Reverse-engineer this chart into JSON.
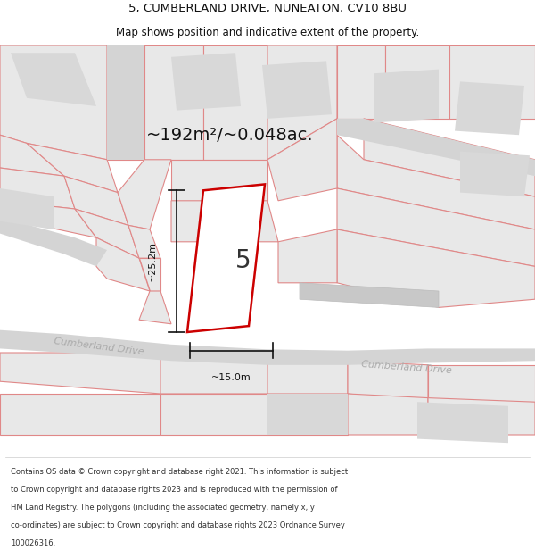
{
  "title_line1": "5, CUMBERLAND DRIVE, NUNEATON, CV10 8BU",
  "title_line2": "Map shows position and indicative extent of the property.",
  "area_text": "~192m²/~0.048ac.",
  "number_label": "5",
  "dim_height": "~25.2m",
  "dim_width": "~15.0m",
  "street_label1": "Cumberland Drive",
  "street_label2": "Cumberland Drive",
  "footer_lines": [
    "Contains OS data © Crown copyright and database right 2021. This information is subject",
    "to Crown copyright and database rights 2023 and is reproduced with the permission of",
    "HM Land Registry. The polygons (including the associated geometry, namely x, y",
    "co-ordinates) are subject to Crown copyright and database rights 2023 Ordnance Survey",
    "100026316."
  ],
  "bg_color": "#ffffff",
  "map_bg": "#f2f2f2",
  "plot_fill": "#ffffff",
  "plot_stroke": "#cc0000",
  "road_fill": "#d8d8d8",
  "parcel_fill": "#e8e8e8",
  "parcel_stroke": "#e08888",
  "gray_block_fill": "#d0d0d0",
  "dim_color": "#111111",
  "street_color": "#aaaaaa",
  "title_color": "#111111",
  "footer_color": "#333333",
  "title_fontsize": 9.5,
  "subtitle_fontsize": 8.5,
  "area_fontsize": 14,
  "number_fontsize": 20,
  "dim_fontsize": 8,
  "street_fontsize": 8,
  "footer_fontsize": 6.0
}
